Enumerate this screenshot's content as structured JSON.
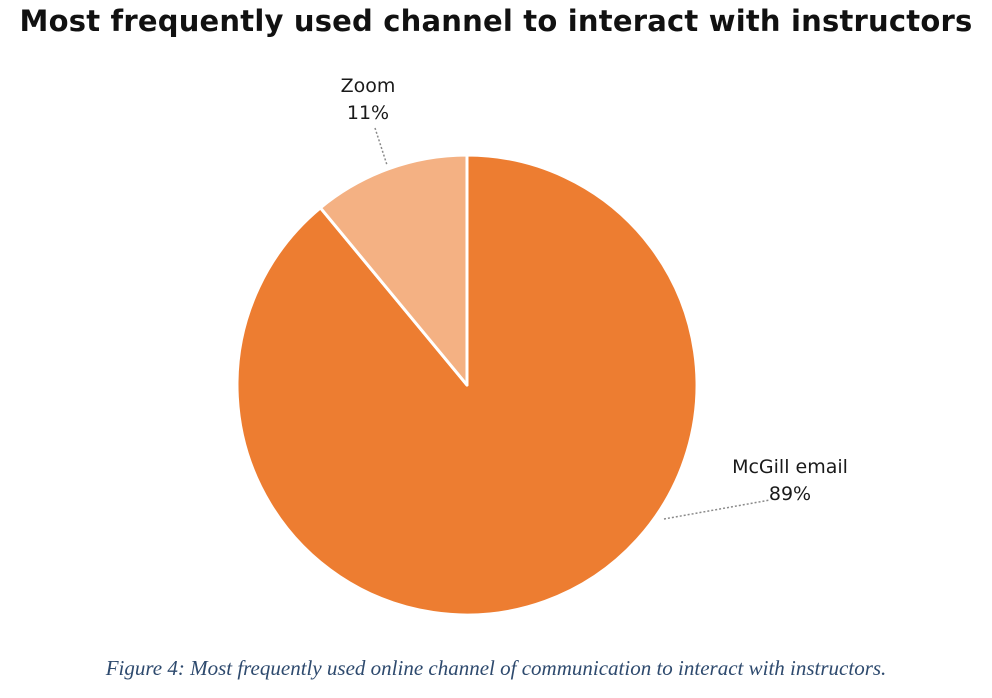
{
  "chart_data": {
    "type": "pie",
    "title": "Most frequently used channel to interact with instructors",
    "slices": [
      {
        "label": "McGill email",
        "value": 89,
        "value_label": "89%",
        "color": "#ED7D31"
      },
      {
        "label": "Zoom",
        "value": 11,
        "value_label": "11%",
        "color": "#F4B183"
      }
    ],
    "legend": "none"
  },
  "caption": "Figure 4: Most frequently used online channel of communication to interact with instructors."
}
